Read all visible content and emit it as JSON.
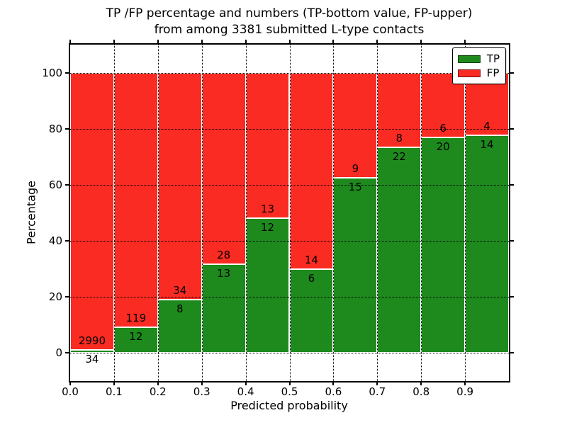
{
  "title": {
    "line1": "TP /FP percentage and numbers (TP-bottom value, FP-upper)",
    "line2": "from among 3381 submitted L-type contacts"
  },
  "axes": {
    "x_label": "Predicted probability",
    "y_label": "Percentage"
  },
  "legend": {
    "position": "upper right",
    "items": [
      {
        "label": "TP",
        "color": "#1e8a1e"
      },
      {
        "label": "FP",
        "color": "#f92b22"
      }
    ]
  },
  "chart_data": {
    "type": "bar",
    "stacked": true,
    "normalized_to": 100,
    "title": "TP /FP percentage and numbers (TP-bottom value, FP-upper) from among 3381 submitted L-type contacts",
    "xlabel": "Predicted probability",
    "ylabel": "Percentage",
    "bin_edges": [
      0.0,
      0.1,
      0.2,
      0.3,
      0.4,
      0.5,
      0.6,
      0.7,
      0.8,
      0.9,
      1.0
    ],
    "series": [
      {
        "name": "TP",
        "color": "#1e8a1e",
        "counts": [
          34,
          12,
          8,
          13,
          12,
          6,
          15,
          22,
          20,
          14
        ]
      },
      {
        "name": "FP",
        "color": "#f92b22",
        "counts": [
          2990,
          119,
          34,
          28,
          13,
          14,
          9,
          8,
          6,
          4
        ]
      }
    ],
    "tp_percent_by_bin": [
      1.1,
      9.2,
      19.0,
      31.7,
      48.0,
      30.0,
      62.5,
      73.3,
      76.9,
      77.8
    ],
    "xlim": [
      0,
      1
    ],
    "ylim": [
      -10,
      110
    ],
    "xticks": [
      "0.0",
      "0.1",
      "0.2",
      "0.3",
      "0.4",
      "0.5",
      "0.6",
      "0.7",
      "0.8",
      "0.9"
    ],
    "yticks": [
      0,
      20,
      40,
      60,
      80,
      100
    ],
    "grid": "dotted, both axes",
    "bar_edge_color": "#ffffff",
    "legend_position": "upper right"
  }
}
